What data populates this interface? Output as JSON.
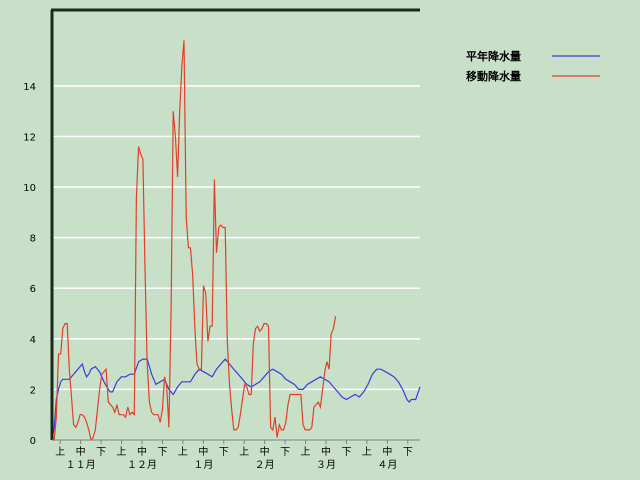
{
  "chart_data": {
    "type": "line",
    "ylim": [
      0,
      17
    ],
    "y_ticks": [
      "0",
      "2",
      "4",
      "6",
      "8",
      "10",
      "12",
      "14"
    ],
    "y_tick_values": [
      0,
      2,
      4,
      6,
      8,
      10,
      12,
      14
    ],
    "grid": true,
    "legend_position": "top-right",
    "x_period_labels": [
      "上",
      "中",
      "下",
      "上",
      "中",
      "下",
      "上",
      "中",
      "下",
      "上",
      "中",
      "下",
      "上",
      "中",
      "下",
      "上",
      "中",
      "下"
    ],
    "x_month_labels": [
      "１１月",
      "１２月",
      "１月",
      "２月",
      "３月",
      "４月"
    ],
    "series": [
      {
        "name": "平年降水量",
        "color": "#3c3cdc",
        "values": [
          [
            0,
            0
          ],
          [
            1,
            0.5
          ],
          [
            2,
            1.6
          ],
          [
            3,
            2.0
          ],
          [
            4,
            2.3
          ],
          [
            5,
            2.4
          ],
          [
            6,
            2.4
          ],
          [
            8,
            2.4
          ],
          [
            10,
            2.6
          ],
          [
            11,
            2.7
          ],
          [
            13,
            2.9
          ],
          [
            14,
            3.0
          ],
          [
            15,
            2.7
          ],
          [
            16,
            2.5
          ],
          [
            17,
            2.6
          ],
          [
            18,
            2.8
          ],
          [
            20,
            2.9
          ],
          [
            22,
            2.7
          ],
          [
            24,
            2.3
          ],
          [
            26,
            2.0
          ],
          [
            27,
            1.9
          ],
          [
            28,
            1.9
          ],
          [
            30,
            2.3
          ],
          [
            32,
            2.5
          ],
          [
            34,
            2.5
          ],
          [
            36,
            2.6
          ],
          [
            38,
            2.6
          ],
          [
            40,
            3.1
          ],
          [
            42,
            3.2
          ],
          [
            44,
            3.2
          ],
          [
            46,
            2.6
          ],
          [
            48,
            2.2
          ],
          [
            50,
            2.3
          ],
          [
            52,
            2.4
          ],
          [
            54,
            2.0
          ],
          [
            56,
            1.8
          ],
          [
            58,
            2.1
          ],
          [
            60,
            2.3
          ],
          [
            62,
            2.3
          ],
          [
            64,
            2.3
          ],
          [
            66,
            2.6
          ],
          [
            68,
            2.8
          ],
          [
            70,
            2.7
          ],
          [
            72,
            2.6
          ],
          [
            74,
            2.5
          ],
          [
            76,
            2.8
          ],
          [
            78,
            3.0
          ],
          [
            80,
            3.2
          ],
          [
            82,
            3.0
          ],
          [
            84,
            2.8
          ],
          [
            86,
            2.6
          ],
          [
            88,
            2.4
          ],
          [
            90,
            2.2
          ],
          [
            92,
            2.1
          ],
          [
            94,
            2.2
          ],
          [
            96,
            2.3
          ],
          [
            98,
            2.5
          ],
          [
            100,
            2.7
          ],
          [
            102,
            2.8
          ],
          [
            104,
            2.7
          ],
          [
            106,
            2.6
          ],
          [
            108,
            2.4
          ],
          [
            110,
            2.3
          ],
          [
            112,
            2.2
          ],
          [
            114,
            2.0
          ],
          [
            116,
            2.0
          ],
          [
            118,
            2.2
          ],
          [
            120,
            2.3
          ],
          [
            122,
            2.4
          ],
          [
            124,
            2.5
          ],
          [
            126,
            2.4
          ],
          [
            128,
            2.3
          ],
          [
            130,
            2.1
          ],
          [
            132,
            1.9
          ],
          [
            134,
            1.7
          ],
          [
            136,
            1.6
          ],
          [
            138,
            1.7
          ],
          [
            140,
            1.8
          ],
          [
            142,
            1.7
          ],
          [
            144,
            1.9
          ],
          [
            146,
            2.2
          ],
          [
            148,
            2.6
          ],
          [
            150,
            2.8
          ],
          [
            152,
            2.8
          ],
          [
            154,
            2.7
          ],
          [
            156,
            2.6
          ],
          [
            158,
            2.5
          ],
          [
            160,
            2.3
          ],
          [
            162,
            2.0
          ],
          [
            164,
            1.6
          ],
          [
            165,
            1.5
          ],
          [
            166,
            1.6
          ],
          [
            168,
            1.6
          ],
          [
            170,
            2.1
          ]
        ]
      },
      {
        "name": "移動降水量",
        "color": "#e04028",
        "values": [
          [
            0,
            0
          ],
          [
            1,
            0
          ],
          [
            2,
            0.9
          ],
          [
            3,
            3.4
          ],
          [
            4,
            3.4
          ],
          [
            5,
            4.4
          ],
          [
            6,
            4.6
          ],
          [
            7,
            4.6
          ],
          [
            8,
            2.8
          ],
          [
            9,
            1.7
          ],
          [
            10,
            0.6
          ],
          [
            11,
            0.5
          ],
          [
            12,
            0.7
          ],
          [
            13,
            1.0
          ],
          [
            14,
            1.0
          ],
          [
            15,
            0.9
          ],
          [
            16,
            0.7
          ],
          [
            17,
            0.4
          ],
          [
            18,
            0
          ],
          [
            19,
            0.1
          ],
          [
            20,
            0.4
          ],
          [
            21,
            1.2
          ],
          [
            22,
            2.0
          ],
          [
            23,
            2.6
          ],
          [
            24,
            2.7
          ],
          [
            25,
            2.8
          ],
          [
            26,
            1.5
          ],
          [
            27,
            1.4
          ],
          [
            28,
            1.3
          ],
          [
            29,
            1.1
          ],
          [
            30,
            1.4
          ],
          [
            31,
            1.0
          ],
          [
            32,
            1.0
          ],
          [
            33,
            1.0
          ],
          [
            34,
            0.9
          ],
          [
            35,
            1.3
          ],
          [
            36,
            1.0
          ],
          [
            37,
            1.1
          ],
          [
            38,
            1.0
          ],
          [
            39,
            9.6
          ],
          [
            40,
            11.6
          ],
          [
            41,
            11.3
          ],
          [
            42,
            11.1
          ],
          [
            43,
            6.6
          ],
          [
            44,
            3.0
          ],
          [
            45,
            1.5
          ],
          [
            46,
            1.1
          ],
          [
            47,
            1.0
          ],
          [
            48,
            1.0
          ],
          [
            49,
            1.0
          ],
          [
            50,
            0.7
          ],
          [
            51,
            1.2
          ],
          [
            52,
            2.5
          ],
          [
            53,
            2.1
          ],
          [
            54,
            0.5
          ],
          [
            55,
            5.2
          ],
          [
            56,
            13.0
          ],
          [
            57,
            12.0
          ],
          [
            58,
            10.4
          ],
          [
            59,
            13.0
          ],
          [
            60,
            14.8
          ],
          [
            61,
            15.8
          ],
          [
            62,
            8.8
          ],
          [
            63,
            7.6
          ],
          [
            64,
            7.6
          ],
          [
            65,
            6.5
          ],
          [
            66,
            4.4
          ],
          [
            67,
            3.0
          ],
          [
            68,
            2.8
          ],
          [
            69,
            2.8
          ],
          [
            70,
            6.1
          ],
          [
            71,
            5.8
          ],
          [
            72,
            3.9
          ],
          [
            73,
            4.5
          ],
          [
            74,
            4.5
          ],
          [
            75,
            10.3
          ],
          [
            76,
            7.4
          ],
          [
            77,
            8.4
          ],
          [
            78,
            8.5
          ],
          [
            79,
            8.4
          ],
          [
            80,
            8.4
          ],
          [
            81,
            3.9
          ],
          [
            82,
            2.2
          ],
          [
            83,
            1.2
          ],
          [
            84,
            0.4
          ],
          [
            85,
            0.4
          ],
          [
            86,
            0.5
          ],
          [
            87,
            1.0
          ],
          [
            88,
            1.6
          ],
          [
            89,
            2.2
          ],
          [
            90,
            2.1
          ],
          [
            91,
            1.8
          ],
          [
            92,
            1.8
          ],
          [
            93,
            3.8
          ],
          [
            94,
            4.4
          ],
          [
            95,
            4.5
          ],
          [
            96,
            4.3
          ],
          [
            97,
            4.4
          ],
          [
            98,
            4.6
          ],
          [
            99,
            4.6
          ],
          [
            100,
            4.5
          ],
          [
            101,
            0.5
          ],
          [
            102,
            0.4
          ],
          [
            103,
            0.9
          ],
          [
            104,
            0.1
          ],
          [
            105,
            0.6
          ],
          [
            106,
            0.4
          ],
          [
            107,
            0.4
          ],
          [
            108,
            0.7
          ],
          [
            109,
            1.4
          ],
          [
            110,
            1.8
          ],
          [
            111,
            1.8
          ],
          [
            112,
            1.8
          ],
          [
            113,
            1.8
          ],
          [
            114,
            1.8
          ],
          [
            115,
            1.8
          ],
          [
            116,
            0.6
          ],
          [
            117,
            0.4
          ],
          [
            118,
            0.4
          ],
          [
            119,
            0.4
          ],
          [
            120,
            0.5
          ],
          [
            121,
            1.3
          ],
          [
            122,
            1.4
          ],
          [
            123,
            1.5
          ],
          [
            124,
            1.3
          ],
          [
            125,
            2.0
          ],
          [
            126,
            2.7
          ],
          [
            127,
            3.1
          ],
          [
            128,
            2.8
          ],
          [
            129,
            4.2
          ],
          [
            130,
            4.4
          ],
          [
            131,
            4.9
          ]
        ]
      }
    ]
  }
}
